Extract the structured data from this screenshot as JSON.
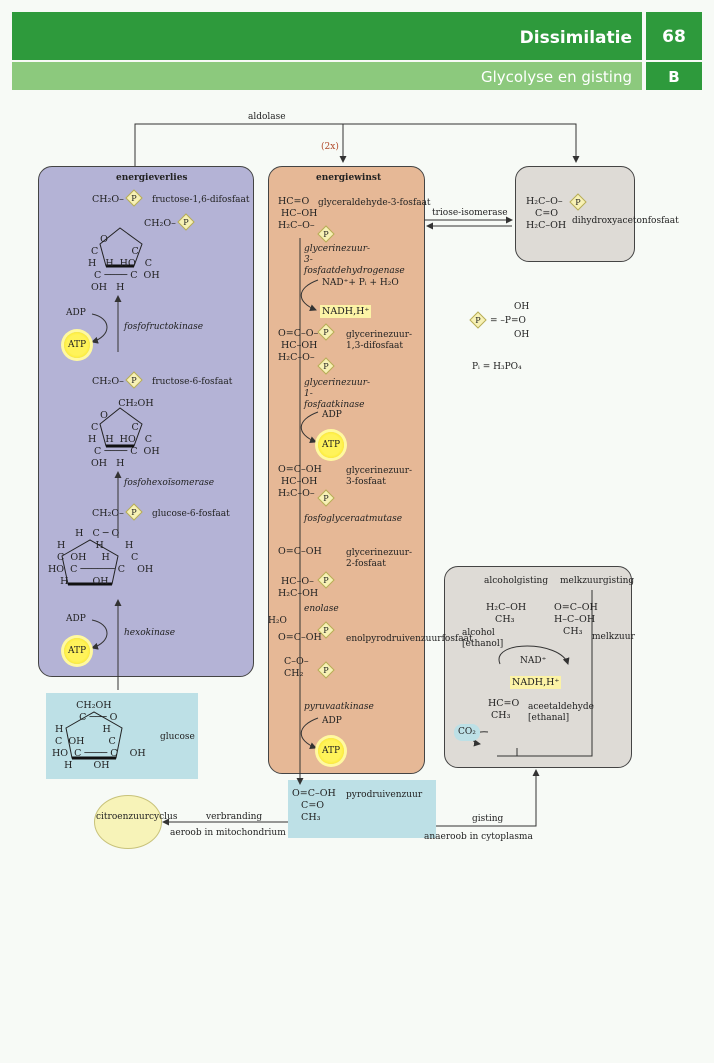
{
  "header": {
    "title": "Dissimilatie",
    "chapter": "68",
    "subtitle": "Glycolyse en gisting",
    "section": "B"
  },
  "top": {
    "aldolase": "aldolase",
    "twox": "(2x)"
  },
  "left": {
    "heading": "energieverlies",
    "fructose16": "fructose-1,6-difosfaat",
    "fosfofructokinase": "fosfofructokinase",
    "fructose6": "fructose-6-fosfaat",
    "fosfohexoisomerase": "fosfohexoïsomerase",
    "glucose6": "glucose-6-fosfaat",
    "hexokinase": "hexokinase",
    "adp1": "ADP",
    "atp1": "ATP",
    "adp2": "ADP",
    "atp2": "ATP"
  },
  "middle": {
    "heading": "energiewinst",
    "glyc3p": "glyceraldehyde-3-fosfaat",
    "enz1": "glycerinezuur-3-fosfaatdehydrogenase",
    "nadin": "NAD⁺+ Pᵢ + H₂O",
    "nadh": "NADH,H⁺",
    "glyc13": "glycerinezuur-1,3-difosfaat",
    "enz2": "glycerinezuur-1-fosfaatkinase",
    "adp": "ADP",
    "atp": "ATP",
    "glyc3": "glycerinezuur-3-fosfaat",
    "enz3": "fosfoglyceraatmutase",
    "glyc2": "glycerinezuur-2-fosfaat",
    "enolase": "enolase",
    "h2o": "H₂O",
    "pep": "enolpyrodruivenzuurfosfaat",
    "enz4": "pyruvaatkinase",
    "adp2": "ADP",
    "atp2": "ATP"
  },
  "right": {
    "triose": "triose-isomerase",
    "dhap": "dihydroxyacetonfosfaat",
    "pdef1": "OH",
    "pdef2": "= –P=O",
    "pdef3": "OH",
    "pi": "Pᵢ = H₃PO₄"
  },
  "gisting": {
    "alcoholgisting": "alcoholgisting",
    "melkzuurgisting": "melkzuurgisting",
    "alcohol": "alcohol [ethanol]",
    "melkzuur": "melkzuur",
    "nad": "NAD⁺",
    "nadh": "NADH,H⁺",
    "aceetaldehyde": "aceetaldehyde [ethanal]",
    "co2": "CO₂"
  },
  "bottom": {
    "glucose": "glucose",
    "pyrodruivenzuur": "pyrodruivenzuur",
    "citroenzuur": "citroenzuurcyclus",
    "verbranding": "verbranding",
    "aeroob": "aeroob in mitochondrium",
    "gisting": "gisting",
    "anaeroob": "anaeroob in cytoplasma"
  }
}
